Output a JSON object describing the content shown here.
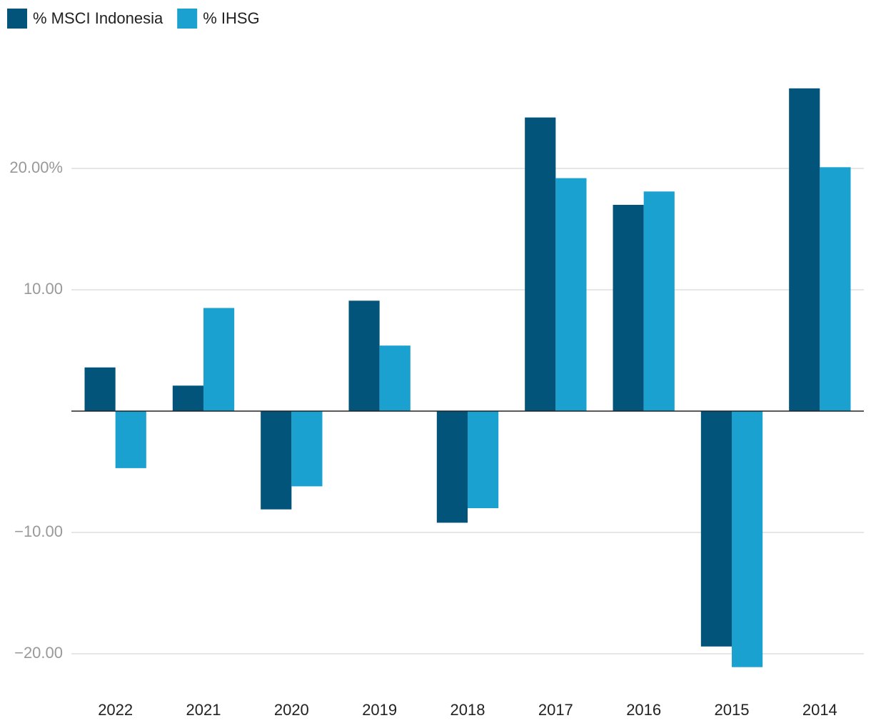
{
  "chart_data": {
    "type": "bar",
    "categories": [
      "2022",
      "2021",
      "2020",
      "2019",
      "2018",
      "2017",
      "2016",
      "2015",
      "2014"
    ],
    "series": [
      {
        "name": "% MSCI Indonesia",
        "color": "#02547a",
        "values": [
          3.6,
          2.1,
          -8.1,
          9.1,
          -9.2,
          24.2,
          17.0,
          -19.4,
          26.6
        ]
      },
      {
        "name": "% IHSG",
        "color": "#1aa1cf",
        "values": [
          -4.7,
          8.5,
          -6.2,
          5.4,
          -8.0,
          19.2,
          18.1,
          -21.1,
          20.1
        ]
      }
    ],
    "ylim": [
      -22,
      30
    ],
    "yticks": [
      {
        "value": -20,
        "label": "−20.00"
      },
      {
        "value": -10,
        "label": "−10.00"
      },
      {
        "value": 10,
        "label": "10.00"
      },
      {
        "value": 20,
        "label": "20.00%"
      }
    ],
    "grid": true,
    "legend": "top-left"
  }
}
